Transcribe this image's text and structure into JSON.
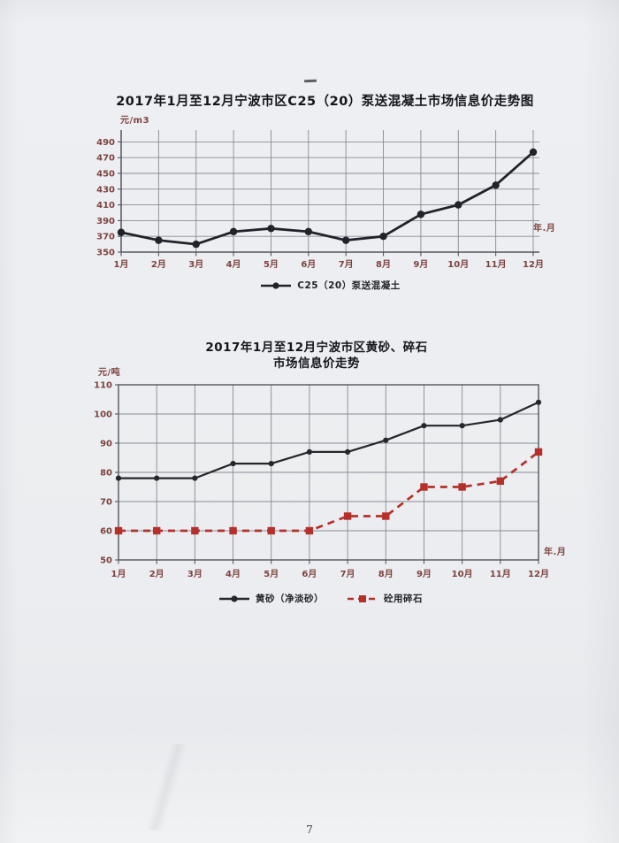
{
  "page": {
    "number": "7"
  },
  "colors": {
    "paper": "#edeff2",
    "grid": "#878b93",
    "axis": "#53565e",
    "title": "#15151d",
    "tick_label": "#7d433f",
    "series_black": "#22222a",
    "series_red": "#b5302a"
  },
  "chart_data": [
    {
      "type": "line",
      "title": "2017年1月至12月宁波市区C25（20）泵送混凝土市场信息价走势图",
      "y_unit": "元/m3",
      "x_unit": "年.月",
      "categories": [
        "1月",
        "2月",
        "3月",
        "4月",
        "5月",
        "6月",
        "7月",
        "8月",
        "9月",
        "10月",
        "11月",
        "12月"
      ],
      "series": [
        {
          "name": "C25（20）泵送混凝土",
          "color": "#22222a",
          "line_style": "solid",
          "marker": "circle",
          "values": [
            375,
            365,
            360,
            376,
            380,
            376,
            365,
            370,
            398,
            410,
            435,
            477
          ]
        }
      ],
      "ylim": [
        350,
        490
      ],
      "ytick": 20,
      "grid": true,
      "legend_position": "bottom"
    },
    {
      "type": "line",
      "title": "2017年1月至12月宁波市区黄砂、碎石",
      "subtitle": "市场信息价走势",
      "y_unit": "元/吨",
      "x_unit": "年.月",
      "categories": [
        "1月",
        "2月",
        "3月",
        "4月",
        "5月",
        "6月",
        "7月",
        "8月",
        "9月",
        "10月",
        "11月",
        "12月"
      ],
      "series": [
        {
          "name": "黄砂（净淡砂）",
          "color": "#26262b",
          "line_style": "solid",
          "marker": "circle",
          "values": [
            78,
            78,
            78,
            83,
            83,
            87,
            87,
            91,
            96,
            96,
            98,
            104
          ]
        },
        {
          "name": "砼用碎石",
          "color": "#b5302a",
          "line_style": "dashed",
          "marker": "square",
          "values": [
            60,
            60,
            60,
            60,
            60,
            60,
            65,
            65,
            75,
            75,
            77,
            87
          ]
        }
      ],
      "ylim": [
        50,
        110
      ],
      "ytick": 10,
      "grid": true,
      "legend_position": "bottom"
    }
  ]
}
